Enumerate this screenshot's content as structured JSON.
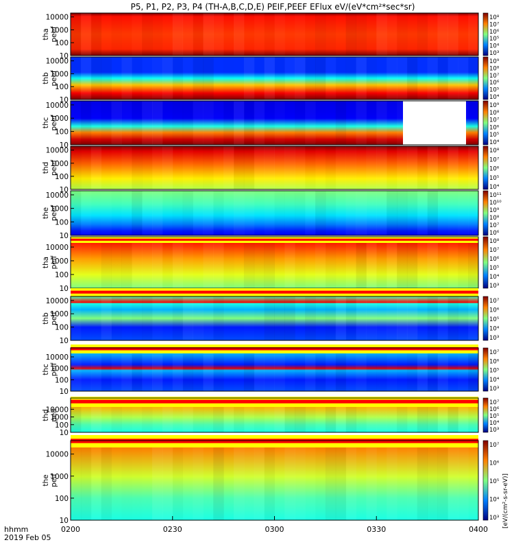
{
  "chart_data": {
    "type": "heatmap",
    "title": "P5, P1, P2, P3, P4 (TH-A,B,C,D,E) PEIF,PEEF EFlux eV/(eV*cm²*sec*sr)",
    "x_time_label": "hhmm",
    "x_date_label": "2019 Feb 05",
    "x_range": [
      "0200",
      "0400"
    ],
    "x_ticks": [
      "0200",
      "0230",
      "0300",
      "0330",
      "0400"
    ],
    "y_scale": "log",
    "y_range": [
      10,
      20000
    ],
    "y_ticks": [
      "10000",
      "1000",
      "100",
      "10"
    ],
    "colorbar_unit_label": "[eV/(cm²-s-sr-eV)]",
    "panels": [
      {
        "label_line1": "tha",
        "label_line2": "peef",
        "cbar_ticks": [
          "10⁸",
          "10⁷",
          "10⁶",
          "10⁵",
          "10⁴",
          "10³"
        ]
      },
      {
        "label_line1": "thb",
        "label_line2": "peef",
        "cbar_ticks": [
          "10⁹",
          "10⁸",
          "10⁷",
          "10⁶",
          "10⁵",
          "10⁴"
        ]
      },
      {
        "label_line1": "thc",
        "label_line2": "peef",
        "cbar_ticks": [
          "10⁹",
          "10⁸",
          "10⁷",
          "10⁶",
          "10⁵",
          "10⁴"
        ]
      },
      {
        "label_line1": "thd",
        "label_line2": "peef",
        "cbar_ticks": [
          "10⁸",
          "10⁷",
          "10⁶",
          "10⁵",
          "10⁴"
        ]
      },
      {
        "label_line1": "the",
        "label_line2": "peef",
        "cbar_ticks": [
          "10¹¹",
          "10¹⁰",
          "10⁹",
          "10⁸",
          "10⁷",
          "10⁶"
        ]
      },
      {
        "label_line1": "tha",
        "label_line2": "peif",
        "cbar_ticks": [
          "10⁸",
          "10⁷",
          "10⁶",
          "10⁵",
          "10⁴",
          "10³"
        ]
      },
      {
        "label_line1": "thb",
        "label_line2": "peif",
        "cbar_ticks": [
          "10⁷",
          "10⁶",
          "10⁵",
          "10⁴",
          "10³"
        ]
      },
      {
        "label_line1": "thc",
        "label_line2": "peif",
        "cbar_ticks": [
          "10⁷",
          "10⁶",
          "10⁵",
          "10⁴",
          "10³"
        ]
      },
      {
        "label_line1": "thd",
        "label_line2": "peif",
        "cbar_ticks": [
          "10⁷",
          "10⁶",
          "10⁵",
          "10⁴",
          "10³"
        ]
      },
      {
        "label_line1": "the",
        "label_line2": "peif",
        "cbar_ticks": [
          "10⁷",
          "10⁶",
          "10⁵",
          "10⁴",
          "10³"
        ]
      }
    ]
  }
}
